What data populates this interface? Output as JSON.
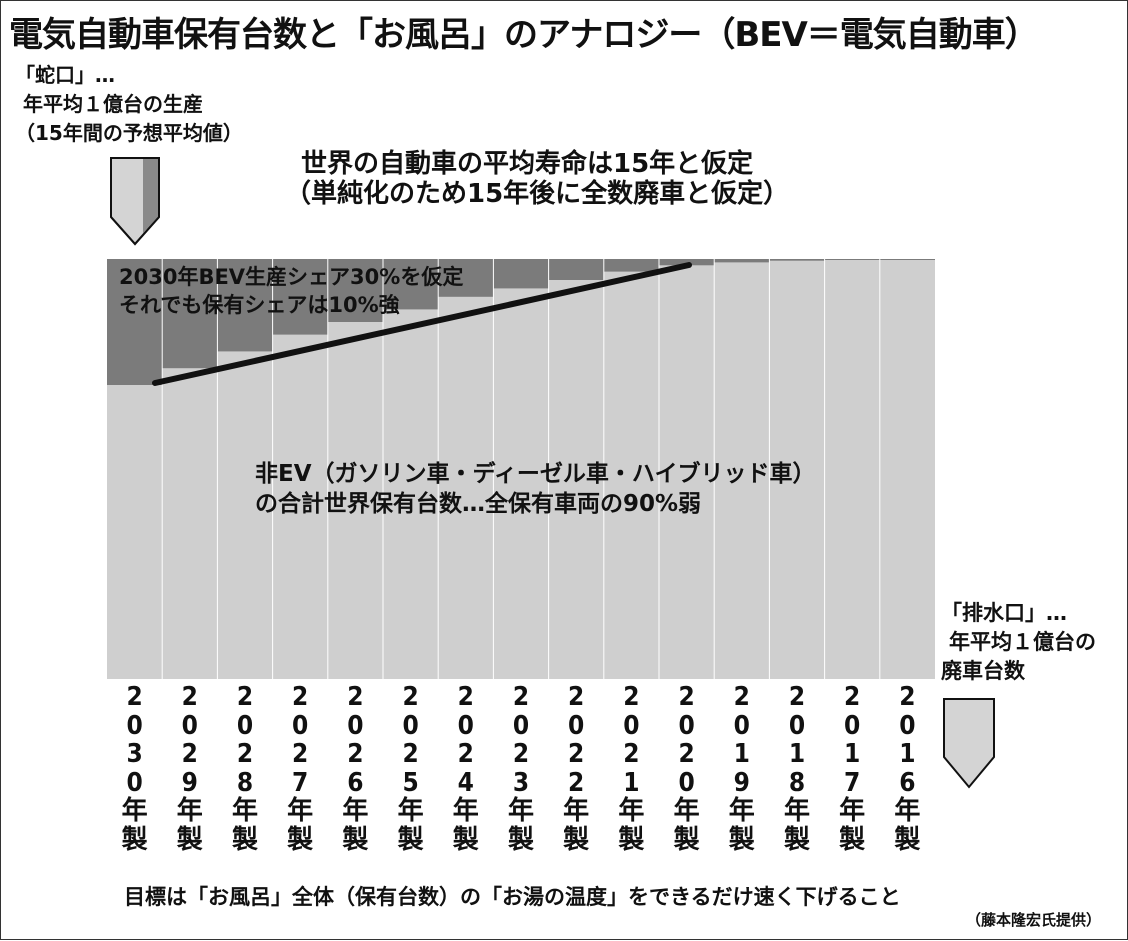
{
  "title": "電気自動車保有台数と「お風呂」のアナロジー（BEV＝電気自動車）",
  "faucet": {
    "lines": [
      "「蛇口」…",
      "年平均１億台の生産",
      "（15年間の予想平均値）"
    ]
  },
  "assumption": {
    "lines": [
      "世界の自動車の平均寿命は15年と仮定",
      "（単純化のため15年後に全数廃車と仮定）"
    ]
  },
  "bev_note": {
    "lines": [
      "2030年BEV生産シェア30%を仮定",
      "それでも保有シェアは10%強"
    ]
  },
  "nonev_note": {
    "lines": [
      "非EV（ガソリン車・ディーゼル車・ハイブリッド車）",
      "の合計世界保有台数…全保有車両の90%弱"
    ]
  },
  "drain": {
    "lines": [
      "「排水口」…",
      "年平均１億台の",
      "廃車台数"
    ]
  },
  "years": [
    {
      "digits": [
        "2",
        "0",
        "3",
        "0"
      ],
      "suffix": [
        "年",
        "製"
      ]
    },
    {
      "digits": [
        "2",
        "0",
        "2",
        "9"
      ],
      "suffix": [
        "年",
        "製"
      ]
    },
    {
      "digits": [
        "2",
        "0",
        "2",
        "8"
      ],
      "suffix": [
        "年",
        "製"
      ]
    },
    {
      "digits": [
        "2",
        "0",
        "2",
        "7"
      ],
      "suffix": [
        "年",
        "製"
      ]
    },
    {
      "digits": [
        "2",
        "0",
        "2",
        "6"
      ],
      "suffix": [
        "年",
        "製"
      ]
    },
    {
      "digits": [
        "2",
        "0",
        "2",
        "5"
      ],
      "suffix": [
        "年",
        "製"
      ]
    },
    {
      "digits": [
        "2",
        "0",
        "2",
        "4"
      ],
      "suffix": [
        "年",
        "製"
      ]
    },
    {
      "digits": [
        "2",
        "0",
        "2",
        "3"
      ],
      "suffix": [
        "年",
        "製"
      ]
    },
    {
      "digits": [
        "2",
        "0",
        "2",
        "2"
      ],
      "suffix": [
        "年",
        "製"
      ]
    },
    {
      "digits": [
        "2",
        "0",
        "2",
        "1"
      ],
      "suffix": [
        "年",
        "製"
      ]
    },
    {
      "digits": [
        "2",
        "0",
        "2",
        "0"
      ],
      "suffix": [
        "年",
        "製"
      ]
    },
    {
      "digits": [
        "2",
        "0",
        "1",
        "9"
      ],
      "suffix": [
        "年",
        "製"
      ]
    },
    {
      "digits": [
        "2",
        "0",
        "1",
        "8"
      ],
      "suffix": [
        "年",
        "製"
      ]
    },
    {
      "digits": [
        "2",
        "0",
        "1",
        "7"
      ],
      "suffix": [
        "年",
        "製"
      ]
    },
    {
      "digits": [
        "2",
        "0",
        "1",
        "6"
      ],
      "suffix": [
        "年",
        "製"
      ]
    }
  ],
  "bev_share_fraction": [
    0.3,
    0.26,
    0.22,
    0.18,
    0.15,
    0.12,
    0.09,
    0.07,
    0.05,
    0.03,
    0.015,
    0.008,
    0.004,
    0.002,
    0.001
  ],
  "footer": "目標は「お風呂」全体（保有台数）の「お湯の温度」をできるだけ速く下げること",
  "credit": "（藤本隆宏氏提供）",
  "colors": {
    "non_ev": "#cfcfcf",
    "bev": "#7b7b7b",
    "trend": "#111111",
    "divider": "#ffffff",
    "arrow_light": "#d4d4d4",
    "arrow_dark": "#8a8a8a"
  }
}
